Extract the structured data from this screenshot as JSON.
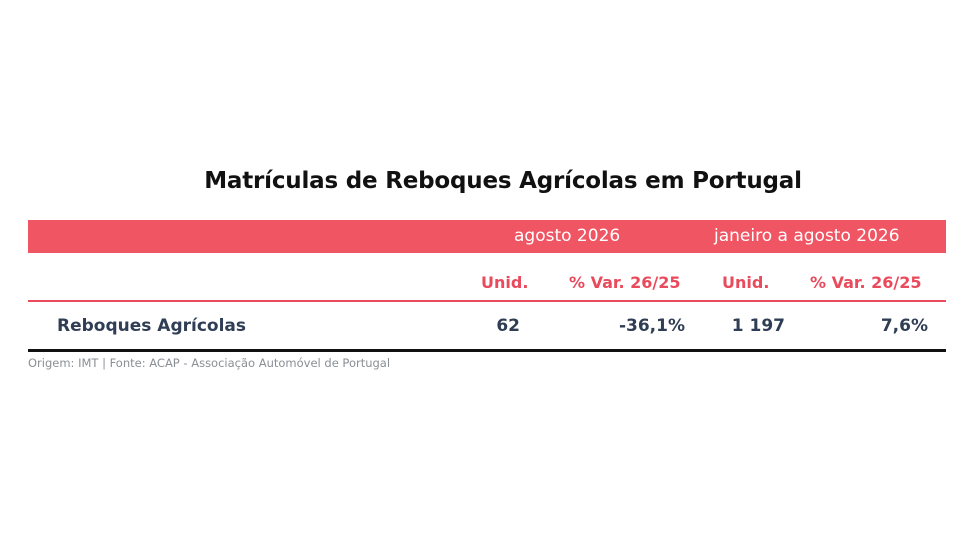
{
  "table": {
    "title": "Matrículas de Reboques Agrícolas em Portugal",
    "accent_color": "#f05563",
    "header_groups": [
      "agosto 2026",
      "janeiro a agosto 2026"
    ],
    "subheaders": [
      "Unid.",
      "% Var. 26/25",
      "Unid.",
      "% Var. 26/25"
    ],
    "rows": [
      {
        "label": "Reboques Agrícolas",
        "values": [
          "62",
          "-36,1%",
          "1 197",
          "7,6%"
        ]
      }
    ],
    "footnote": "Origem: IMT | Fonte: ACAP - Associação Automóvel de Portugal"
  }
}
